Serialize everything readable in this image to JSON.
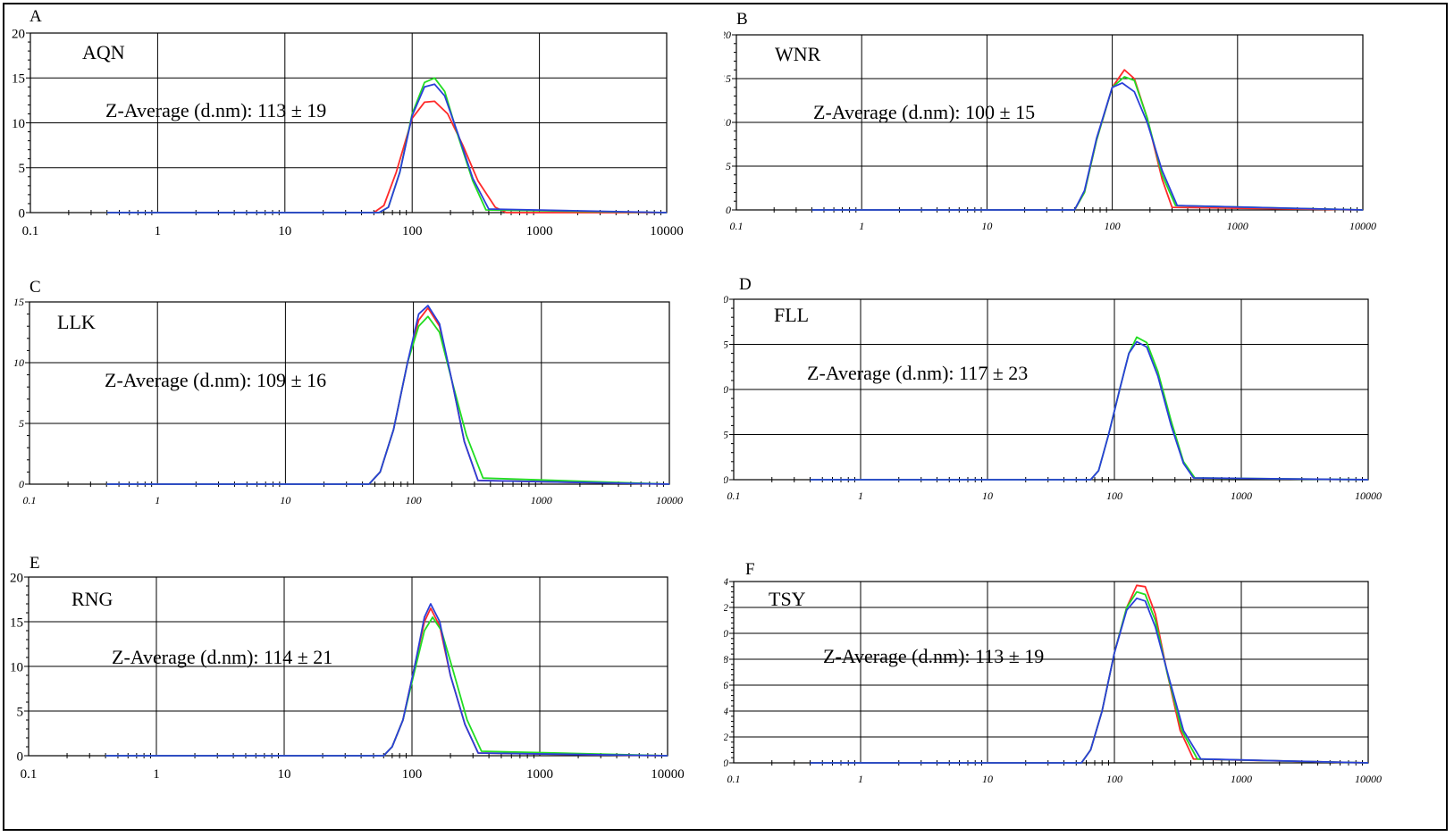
{
  "colors": {
    "red": "#ff2a2a",
    "green": "#22dd22",
    "blue": "#2a3fd8",
    "grid": "#000000"
  },
  "chart_data": [
    {
      "type": "line",
      "letter": "A",
      "label": "AQN",
      "annotation": "Z-Average (d.nm): 113 ± 19",
      "xscale": "log",
      "xlim": [
        0.1,
        10000
      ],
      "ylim": [
        0,
        20
      ],
      "xticks": [
        "0.1",
        "1",
        "10",
        "100",
        "1000",
        "10000"
      ],
      "yticks": [
        "0",
        "5",
        "10",
        "15",
        "20"
      ],
      "grid": true,
      "series": [
        {
          "color": "red",
          "x": [
            0.4,
            50,
            60,
            75,
            100,
            125,
            150,
            190,
            250,
            330,
            450,
            550,
            10000
          ],
          "y": [
            0,
            0,
            0.8,
            4.5,
            10.5,
            12.3,
            12.4,
            11,
            7.5,
            3.5,
            0.6,
            0,
            0
          ]
        },
        {
          "color": "green",
          "x": [
            0.4,
            55,
            65,
            80,
            100,
            125,
            150,
            180,
            230,
            300,
            380,
            10000
          ],
          "y": [
            0,
            0,
            0.6,
            4.5,
            11,
            14.5,
            15,
            13.5,
            8.5,
            3.5,
            0.3,
            0
          ]
        },
        {
          "color": "blue",
          "x": [
            0.4,
            55,
            65,
            80,
            100,
            125,
            150,
            180,
            230,
            300,
            400,
            10000
          ],
          "y": [
            0,
            0,
            0.6,
            4.5,
            10.8,
            14,
            14.3,
            13,
            8.7,
            3.8,
            0.4,
            0
          ]
        }
      ]
    },
    {
      "type": "line",
      "letter": "B",
      "label": "WNR",
      "annotation": "Z-Average (d.nm): 100 ± 15",
      "xscale": "log",
      "xlim": [
        0.1,
        10000
      ],
      "ylim": [
        0,
        20
      ],
      "xticks": [
        "0.1",
        "1",
        "10",
        "100",
        "1000",
        "10000"
      ],
      "yticks": [
        "0",
        "5",
        "10",
        "15",
        "20"
      ],
      "grid": true,
      "series": [
        {
          "color": "red",
          "x": [
            0.4,
            50,
            60,
            75,
            100,
            125,
            150,
            190,
            250,
            300,
            10000
          ],
          "y": [
            0,
            0,
            2,
            8,
            14,
            16,
            15,
            10.5,
            3.5,
            0.3,
            0
          ]
        },
        {
          "color": "green",
          "x": [
            0.4,
            50,
            60,
            75,
            100,
            125,
            150,
            190,
            250,
            320,
            10000
          ],
          "y": [
            0,
            0,
            2,
            8,
            14,
            15.2,
            14.8,
            10.5,
            4,
            0.5,
            0
          ]
        },
        {
          "color": "blue",
          "x": [
            0.4,
            50,
            60,
            75,
            100,
            120,
            150,
            190,
            250,
            330,
            10000
          ],
          "y": [
            0,
            0,
            2.2,
            8.2,
            14,
            14.5,
            13.5,
            10,
            4.5,
            0.5,
            0
          ]
        }
      ]
    },
    {
      "type": "line",
      "letter": "C",
      "label": "LLK",
      "annotation": "Z-Average (d.nm): 109 ± 16",
      "xscale": "log",
      "xlim": [
        0.1,
        10000
      ],
      "ylim": [
        0,
        15
      ],
      "xticks": [
        "0.1",
        "1",
        "10",
        "100",
        "1000",
        "10000"
      ],
      "yticks": [
        "0",
        "5",
        "10",
        "15"
      ],
      "grid": true,
      "series": [
        {
          "color": "red",
          "x": [
            0.4,
            45,
            55,
            70,
            90,
            110,
            130,
            160,
            200,
            250,
            320,
            10000
          ],
          "y": [
            0,
            0,
            1,
            4.5,
            10,
            13.5,
            14.5,
            13,
            8.5,
            3.5,
            0.3,
            0
          ]
        },
        {
          "color": "green",
          "x": [
            0.4,
            45,
            55,
            70,
            90,
            110,
            130,
            160,
            200,
            260,
            350,
            10000
          ],
          "y": [
            0,
            0,
            1,
            4.5,
            10,
            13,
            13.8,
            12.5,
            8.5,
            4,
            0.5,
            0
          ]
        },
        {
          "color": "blue",
          "x": [
            0.4,
            45,
            55,
            70,
            90,
            110,
            130,
            160,
            200,
            250,
            320,
            10000
          ],
          "y": [
            0,
            0,
            1,
            4.5,
            10,
            14,
            14.7,
            13.2,
            8.5,
            3.5,
            0.3,
            0
          ]
        }
      ]
    },
    {
      "type": "line",
      "letter": "D",
      "label": "FLL",
      "annotation": "Z-Average (d.nm): 117 ± 23",
      "xscale": "log",
      "xlim": [
        0.1,
        10000
      ],
      "ylim": [
        0,
        20
      ],
      "xticks": [
        "0.1",
        "1",
        "10",
        "100",
        "1000",
        "10000"
      ],
      "yticks": [
        "0",
        "5",
        "10",
        "15",
        "20"
      ],
      "grid": true,
      "series": [
        {
          "color": "green",
          "x": [
            0.4,
            65,
            75,
            90,
            110,
            130,
            150,
            180,
            220,
            280,
            350,
            430,
            10000
          ],
          "y": [
            0,
            0,
            1,
            5,
            10,
            14,
            15.8,
            15.2,
            12,
            6.5,
            2,
            0.2,
            0
          ]
        },
        {
          "color": "blue",
          "x": [
            0.4,
            65,
            75,
            90,
            110,
            130,
            150,
            180,
            220,
            280,
            350,
            420,
            10000
          ],
          "y": [
            0,
            0,
            1,
            5,
            10,
            14,
            15.3,
            14.7,
            11.5,
            6,
            1.8,
            0.2,
            0
          ]
        }
      ]
    },
    {
      "type": "line",
      "letter": "E",
      "label": "RNG",
      "annotation": "Z-Average (d.nm): 114 ± 21",
      "xscale": "log",
      "xlim": [
        0.1,
        10000
      ],
      "ylim": [
        0,
        20
      ],
      "xticks": [
        "0.1",
        "1",
        "10",
        "100",
        "1000",
        "10000"
      ],
      "yticks": [
        "0",
        "5",
        "10",
        "15",
        "20"
      ],
      "grid": true,
      "series": [
        {
          "color": "red",
          "x": [
            0.4,
            60,
            70,
            85,
            105,
            125,
            140,
            165,
            200,
            260,
            330,
            10000
          ],
          "y": [
            0,
            0,
            1,
            4,
            10,
            15,
            16.5,
            14.5,
            9,
            3.5,
            0.3,
            0
          ]
        },
        {
          "color": "green",
          "x": [
            0.4,
            60,
            70,
            85,
            105,
            125,
            145,
            170,
            210,
            270,
            350,
            10000
          ],
          "y": [
            0,
            0,
            1,
            4,
            9.5,
            14,
            15.5,
            14,
            9.5,
            4,
            0.5,
            0
          ]
        },
        {
          "color": "blue",
          "x": [
            0.4,
            60,
            70,
            85,
            105,
            125,
            140,
            165,
            200,
            260,
            330,
            10000
          ],
          "y": [
            0,
            0,
            1,
            4,
            10,
            15.5,
            17,
            15,
            9,
            3.5,
            0.3,
            0
          ]
        }
      ]
    },
    {
      "type": "line",
      "letter": "F",
      "label": "TSY",
      "annotation": "Z-Average (d.nm): 113 ± 19",
      "xscale": "log",
      "xlim": [
        0.1,
        10000
      ],
      "ylim": [
        0,
        14
      ],
      "xticks": [
        "0.1",
        "1",
        "10",
        "100",
        "1000",
        "10000"
      ],
      "yticks": [
        "0",
        "2",
        "4",
        "6",
        "8",
        "10",
        "12",
        "14"
      ],
      "grid": true,
      "series": [
        {
          "color": "red",
          "x": [
            0.4,
            55,
            65,
            80,
            100,
            125,
            150,
            175,
            210,
            260,
            330,
            420,
            10000
          ],
          "y": [
            0,
            0,
            1,
            4,
            8.5,
            12,
            13.7,
            13.6,
            11.5,
            7,
            2.5,
            0.3,
            0
          ]
        },
        {
          "color": "green",
          "x": [
            0.4,
            55,
            65,
            80,
            100,
            125,
            150,
            175,
            210,
            260,
            340,
            450,
            10000
          ],
          "y": [
            0,
            0,
            1,
            4,
            8.5,
            12,
            13.2,
            13,
            11,
            7,
            2.5,
            0.3,
            0
          ]
        },
        {
          "color": "blue",
          "x": [
            0.4,
            55,
            65,
            80,
            100,
            125,
            150,
            175,
            210,
            270,
            350,
            480,
            10000
          ],
          "y": [
            0,
            0,
            1,
            4,
            8.5,
            11.8,
            12.7,
            12.5,
            10.5,
            6.5,
            2.5,
            0.3,
            0
          ]
        }
      ]
    }
  ]
}
